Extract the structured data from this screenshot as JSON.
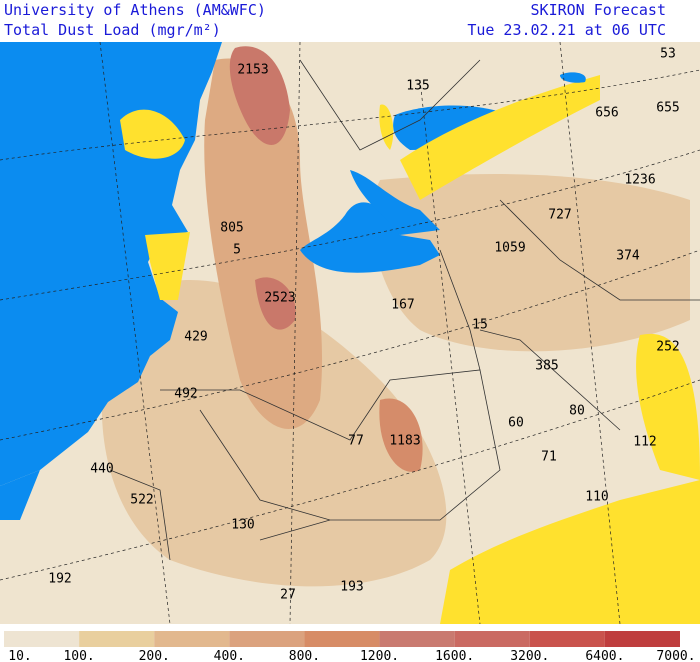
{
  "header": {
    "left_line1": "University of Athens (AM&WFC)",
    "left_line2": "Total Dust Load (mgr/m²)",
    "right_line1": "SKIRON Forecast",
    "right_line2": "Tue 23.02.21 at 06 UTC"
  },
  "map_labels": [
    "2153",
    "135",
    "53",
    "656",
    "655",
    "1236",
    "727",
    "805",
    "1059",
    "374",
    "5",
    "2523",
    "167",
    "15",
    "429",
    "252",
    "385",
    "492",
    "80",
    "60",
    "77",
    "1183",
    "112",
    "71",
    "440",
    "522",
    "110",
    "130",
    "193",
    "192",
    "27"
  ],
  "colorbar": {
    "labels": [
      "10.",
      "100.",
      "200.",
      "400.",
      "800.",
      "1200.",
      "1600.",
      "3200.",
      "6400.",
      "7000."
    ],
    "colors": [
      "#eee4d2",
      "#e9cf9e",
      "#e2b88e",
      "#dba27e",
      "#d78c66",
      "#c97a70",
      "#ca6a62",
      "#c9534d",
      "#bf3e3e"
    ]
  }
}
